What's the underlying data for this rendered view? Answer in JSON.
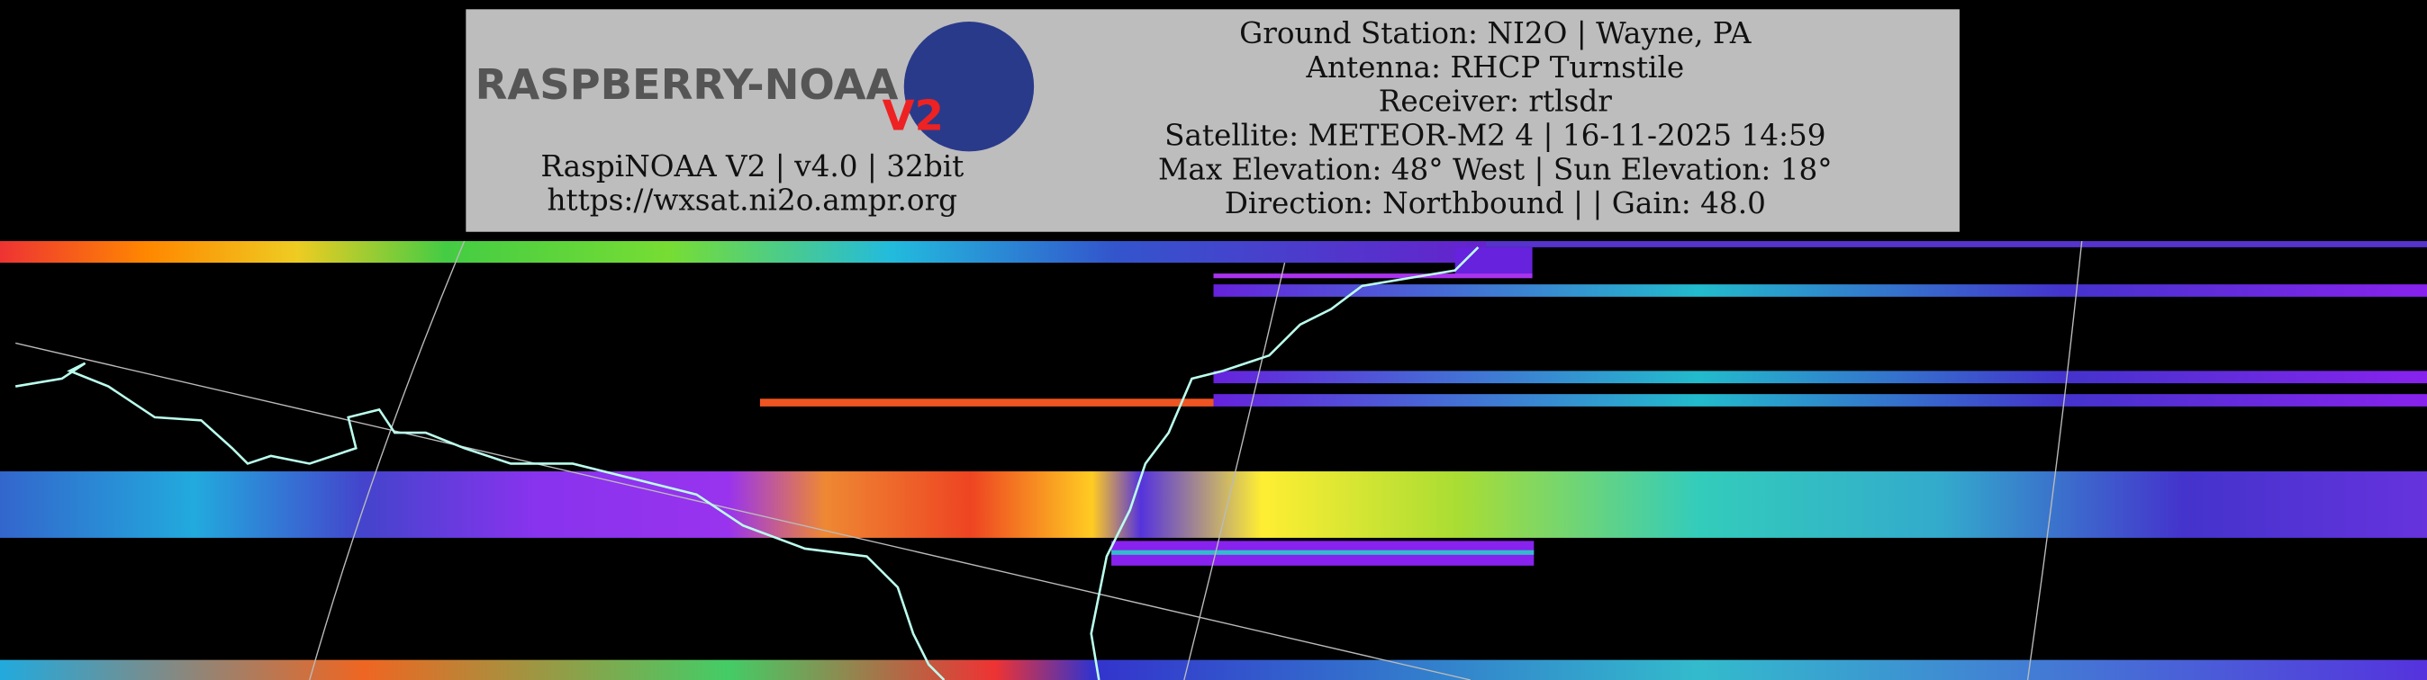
{
  "header": {
    "logo_text": "RASPBERRY-NOAA",
    "logo_badge": "V2",
    "left_lines": [
      "RaspiNOAA V2 | v4.0 | 32bit",
      "https://wxsat.ni2o.ampr.org"
    ],
    "right_lines": [
      "Ground Station: NI2O | Wayne, PA",
      "Antenna: RHCP Turnstile",
      "Receiver: rtlsdr",
      "Satellite: METEOR-M2 4 | 16-11-2025 14:59",
      "Max Elevation: 48° West | Sun Elevation: 18°",
      "Direction: Northbound | | Gain: 48.0"
    ]
  }
}
